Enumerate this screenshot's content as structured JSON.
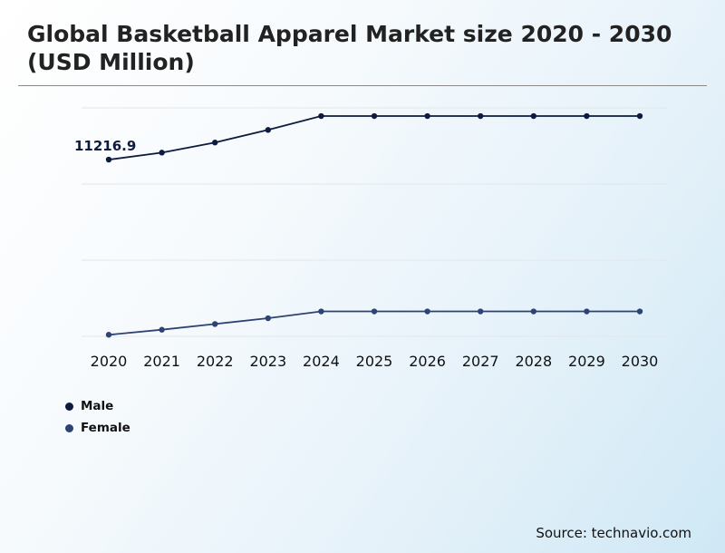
{
  "title": "Global Basketball Apparel Market size 2020 - 2030 (USD Million)",
  "source": "Source: technavio.com",
  "chart_data": {
    "type": "line",
    "x": [
      "2020",
      "2021",
      "2022",
      "2023",
      "2024",
      "2025",
      "2026",
      "2027",
      "2028",
      "2029",
      "2030"
    ],
    "series": [
      {
        "name": "Male",
        "color": "#0d1b3e",
        "values": [
          11216.9,
          11660,
          12300,
          13100,
          13980,
          13980,
          13980,
          13980,
          13980,
          13980,
          13980
        ]
      },
      {
        "name": "Female",
        "color": "#2e4374",
        "values": [
          100,
          420,
          780,
          1150,
          1580,
          1580,
          1580,
          1580,
          1580,
          1580,
          1580
        ]
      }
    ],
    "annotations": [
      {
        "series": "Male",
        "x": "2020",
        "text": "11216.9"
      }
    ],
    "ylim": [
      0,
      14500
    ],
    "grid": true,
    "legend_position": "bottom-left"
  }
}
